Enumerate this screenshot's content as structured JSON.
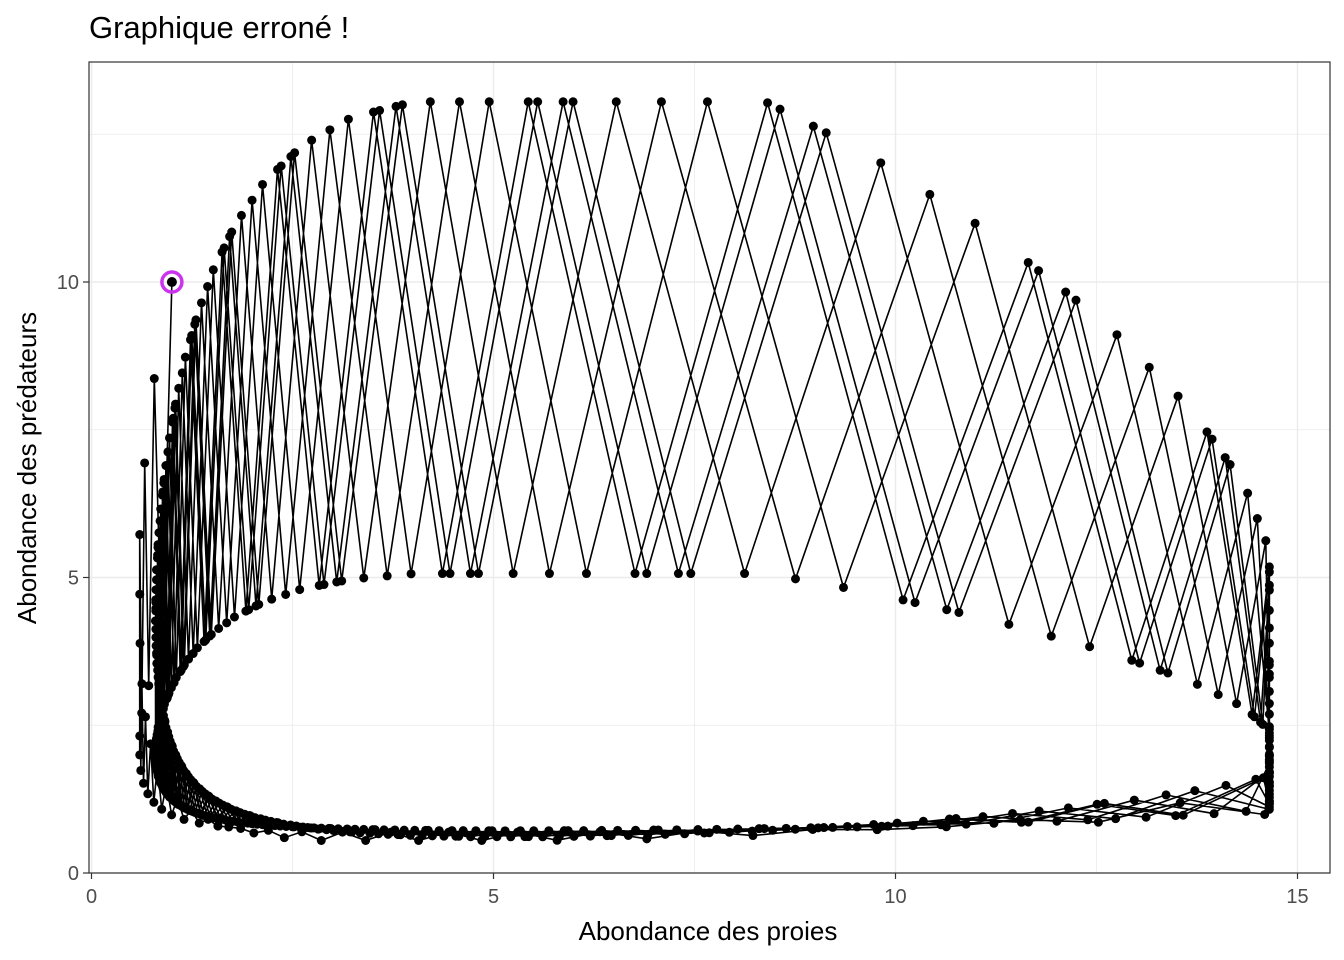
{
  "chart_data": {
    "type": "line",
    "title": "Graphique erroné !",
    "xlabel": "Abondance des proies",
    "ylabel": "Abondance des prédateurs",
    "xlim": [
      0,
      15
    ],
    "ylim": [
      0,
      13.4
    ],
    "x_ticks": [
      0,
      5,
      10,
      15
    ],
    "y_ticks": [
      0,
      5,
      10
    ],
    "grid": true,
    "markers": true,
    "start_point": {
      "x": 1,
      "y": 10,
      "highlight_color": "#cc33ee"
    },
    "colors": {
      "line": "#000000",
      "point": "#000000",
      "grid": "#ebebeb",
      "panel_border": "#333333"
    },
    "series": [
      {
        "values_note_x": "approximate readings of the outer trajectory envelope",
        "x": [
          1.0,
          1.1,
          1.3,
          1.6,
          2.0,
          2.5,
          3.0,
          3.6,
          4.2,
          4.8,
          5.4,
          6.0,
          6.6,
          7.2,
          7.8,
          8.4,
          9.0,
          9.6,
          10.2,
          10.8,
          11.4,
          12.0,
          12.6,
          13.2,
          13.8,
          14.3,
          14.6,
          14.65,
          14.5,
          14.0,
          13.4,
          12.6,
          11.6,
          10.6,
          9.6,
          8.6,
          7.6,
          6.6,
          5.6,
          4.6,
          3.6,
          2.7,
          1.9,
          1.3,
          0.95,
          0.8
        ],
        "y": [
          10.0,
          10.5,
          11.0,
          11.6,
          12.0,
          12.4,
          12.7,
          12.9,
          13.0,
          13.05,
          13.0,
          12.8,
          12.5,
          12.1,
          11.6,
          11.0,
          10.4,
          9.7,
          8.9,
          8.1,
          7.3,
          6.5,
          5.8,
          5.1,
          4.5,
          4.1,
          3.8,
          3.5,
          3.1,
          2.6,
          2.1,
          1.7,
          1.3,
          1.05,
          0.9,
          0.8,
          0.72,
          0.65,
          0.6,
          0.6,
          0.65,
          0.8,
          1.1,
          1.8,
          3.5,
          6.0
        ]
      }
    ]
  }
}
